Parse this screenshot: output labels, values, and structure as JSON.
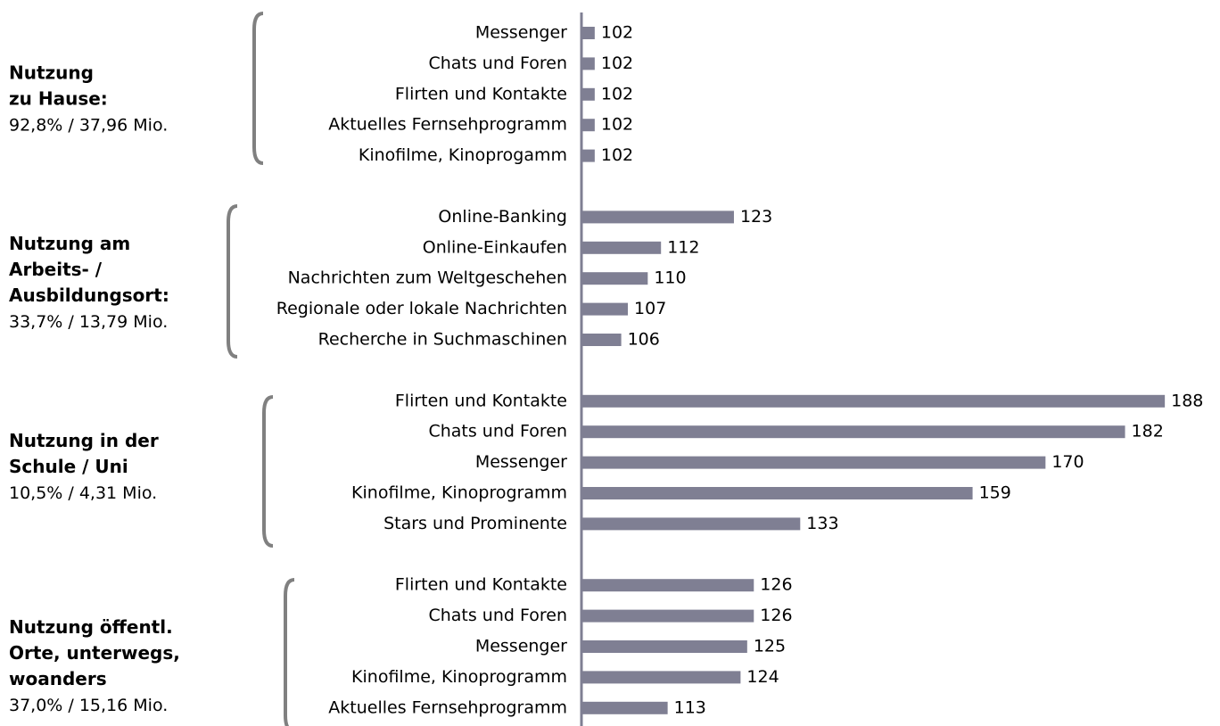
{
  "chart_data": {
    "type": "bar",
    "color": "#7f7f93",
    "xlim": [
      100,
      190
    ],
    "groups": [
      {
        "title": [
          "Nutzung",
          "zu Hause:"
        ],
        "subtitle": "92,8% / 37,96 Mio.",
        "categories": [
          "Messenger",
          "Chats und Foren",
          "Flirten und Kontakte",
          "Aktuelles Fernsehprogramm",
          "Kinofilme, Kinoprogamm"
        ],
        "values": [
          102,
          102,
          102,
          102,
          102
        ]
      },
      {
        "title": [
          "Nutzung am",
          "Arbeits- /",
          "Ausbildungsort:"
        ],
        "subtitle": "33,7% / 13,79 Mio.",
        "categories": [
          "Online-Banking",
          "Online-Einkaufen",
          "Nachrichten zum Weltgeschehen",
          "Regionale oder lokale Nachrichten",
          "Recherche in Suchmaschinen"
        ],
        "values": [
          123,
          112,
          110,
          107,
          106
        ]
      },
      {
        "title": [
          "Nutzung in der",
          "Schule / Uni"
        ],
        "subtitle": "10,5% / 4,31 Mio.",
        "categories": [
          "Flirten und Kontakte",
          "Chats und Foren",
          "Messenger",
          "Kinofilme, Kinoprogramm",
          "Stars und Prominente"
        ],
        "values": [
          188,
          182,
          170,
          159,
          133
        ]
      },
      {
        "title": [
          "Nutzung öffentl.",
          "Orte, unterwegs,",
          "woanders"
        ],
        "subtitle": "37,0% / 15,16 Mio.",
        "categories": [
          "Flirten und Kontakte",
          "Chats und Foren",
          "Messenger",
          "Kinofilme, Kinoprogramm",
          "Aktuelles Fernsehprogramm"
        ],
        "values": [
          126,
          126,
          125,
          124,
          113
        ]
      }
    ]
  }
}
